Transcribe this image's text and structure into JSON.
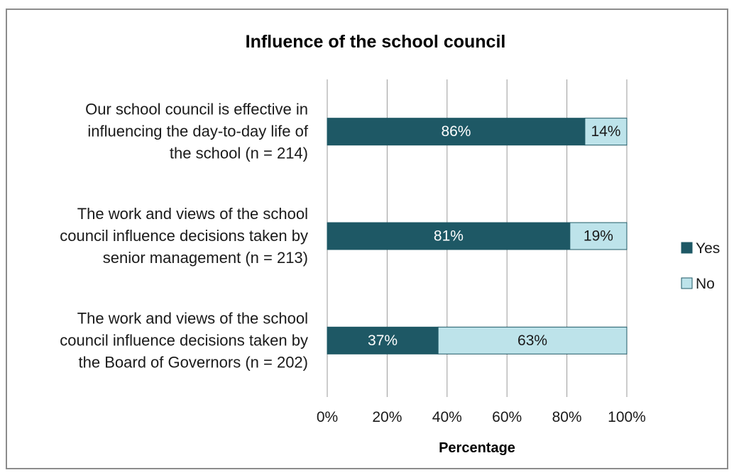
{
  "colors": {
    "yes": "#1e5865",
    "no": "#bde3ea",
    "no_border": "#1e5865",
    "grid": "#9a9a9a",
    "yes_label": "#ffffff",
    "no_label": "#1a1a1a"
  },
  "chart_data": {
    "type": "bar",
    "orientation": "horizontal",
    "stacked": true,
    "title": "Influence of the school council",
    "xlabel": "Percentage",
    "ylabel": "",
    "xlim": [
      0,
      100
    ],
    "x_ticks": [
      "0%",
      "20%",
      "40%",
      "60%",
      "80%",
      "100%"
    ],
    "grid": "vertical",
    "legend_position": "right",
    "categories": [
      [
        "Our school council is effective in",
        "influencing the day-to-day life of",
        "the school (n = 214)"
      ],
      [
        "The work and views of the school",
        "council influence decisions taken by",
        "senior management (n = 213)"
      ],
      [
        "The work and views of the school",
        "council influence decisions taken by",
        "the Board of Governors (n = 202)"
      ]
    ],
    "series": [
      {
        "name": "Yes",
        "values": [
          86,
          81,
          37
        ],
        "labels": [
          "86%",
          "81%",
          "37%"
        ]
      },
      {
        "name": "No",
        "values": [
          14,
          19,
          63
        ],
        "labels": [
          "14%",
          "19%",
          "63%"
        ]
      }
    ]
  }
}
